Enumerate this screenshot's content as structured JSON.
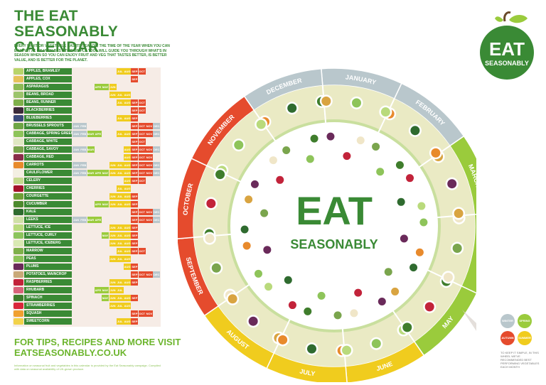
{
  "title": "THE EAT SEASONABLY CALENDAR",
  "intro": "EVERY FRUIT OR VEGETABLE HAS ITS SEASON, THE TIME OF THE YEAR WHEN YOU CAN ENJOY IT AT ITS VERY BEST. THIS SIMPLE TOOL WILL GUIDE YOU THROUGH WHAT'S IN SEASON WHEN SO YOU CAN ENJOY FRUIT AND VEG THAT TASTES BETTER, IS BETTER VALUE, AND IS BETTER FOR THE PLANET.",
  "colors": {
    "winter": "#b9c7cc",
    "spring": "#9acb3c",
    "summer": "#f0cc1e",
    "autumn": "#e54b2d",
    "green": "#3a8a35",
    "ring_ivory": "#eaeac4",
    "inner": "#c9df9e"
  },
  "month_abbr": [
    "JAN",
    "FEB",
    "MAR",
    "APR",
    "MAY",
    "JUN",
    "JUL",
    "AUG",
    "SEP",
    "OCT",
    "NOV",
    "DEC"
  ],
  "produce": [
    {
      "name": "APPLES, BRAMLEY",
      "months": [
        7,
        8,
        9,
        10
      ]
    },
    {
      "name": "APPLES, COX",
      "months": [
        9
      ]
    },
    {
      "name": "ASPARAGUS",
      "months": [
        4,
        5,
        6
      ]
    },
    {
      "name": "BEANS, BROAD",
      "months": [
        6,
        7,
        8
      ]
    },
    {
      "name": "BEANS, RUNNER",
      "months": [
        7,
        8,
        9,
        10
      ]
    },
    {
      "name": "BLACKBERRIES",
      "months": [
        9,
        10
      ]
    },
    {
      "name": "BLUEBERRIES",
      "months": [
        7,
        8,
        9
      ]
    },
    {
      "name": "BRUSSELS SPROUTS",
      "months": [
        1,
        2,
        9,
        10,
        11,
        12
      ]
    },
    {
      "name": "CABBAGE, SPRING GREEN",
      "months": [
        1,
        2,
        3,
        4,
        7,
        8,
        9,
        10,
        11,
        12
      ]
    },
    {
      "name": "CABBAGE, WHITE",
      "months": [
        9,
        10
      ]
    },
    {
      "name": "CABBAGE, SAVOY",
      "months": [
        1,
        2,
        3,
        8,
        9,
        10,
        11,
        12
      ]
    },
    {
      "name": "CABBAGE, RED",
      "months": [
        8,
        9,
        10,
        11
      ]
    },
    {
      "name": "CARROTS",
      "months": [
        1,
        2,
        6,
        7,
        8,
        9,
        10,
        11,
        12
      ]
    },
    {
      "name": "CAULIFLOWER",
      "months": [
        1,
        2,
        3,
        4,
        5,
        6,
        7,
        8,
        9,
        10,
        11,
        12
      ]
    },
    {
      "name": "CELERY",
      "months": [
        8,
        9,
        10
      ]
    },
    {
      "name": "CHERRIES",
      "months": [
        7,
        8
      ]
    },
    {
      "name": "COURGETTE",
      "months": [
        6,
        7,
        8,
        9
      ]
    },
    {
      "name": "CUCUMBER",
      "months": [
        4,
        5,
        6,
        7,
        8,
        9
      ]
    },
    {
      "name": "KALE",
      "months": [
        9,
        10,
        11,
        12
      ]
    },
    {
      "name": "LEEKS",
      "months": [
        1,
        2,
        3,
        4,
        9,
        10,
        11,
        12
      ]
    },
    {
      "name": "LETTUCE, ICE",
      "months": [
        6,
        7,
        8,
        9
      ]
    },
    {
      "name": "LETTUCE, CURLY",
      "months": [
        5,
        6,
        7,
        8,
        9
      ]
    },
    {
      "name": "LETTUCE, ICEBERG",
      "months": [
        6,
        7,
        8,
        9
      ]
    },
    {
      "name": "MARROW",
      "months": [
        7,
        8,
        9,
        10
      ]
    },
    {
      "name": "PEAS",
      "months": [
        6,
        7,
        8
      ]
    },
    {
      "name": "PLUMS",
      "months": [
        8,
        9
      ]
    },
    {
      "name": "POTATOES, MAINCROP",
      "months": [
        9,
        10,
        11,
        12
      ]
    },
    {
      "name": "RASPBERRIES",
      "months": [
        6,
        7,
        8,
        9
      ]
    },
    {
      "name": "RHUBARB",
      "months": [
        4,
        5,
        6,
        7
      ]
    },
    {
      "name": "SPINACH",
      "months": [
        5,
        6,
        7,
        8,
        9
      ]
    },
    {
      "name": "STRAWBERRIES",
      "months": [
        6,
        7,
        8
      ]
    },
    {
      "name": "SQUASH",
      "months": [
        9,
        10,
        11
      ]
    },
    {
      "name": "SWEETCORN",
      "months": [
        7,
        8,
        9
      ]
    }
  ],
  "tips_line1": "FOR TIPS, RECIPES AND MORE VISIT",
  "tips_line2": "EATSEASONABLY.CO.UK",
  "footnote": "Information on seasonal fruit and vegetables in this calendar is provided by the Eat Seasonably campaign. Compiled with data on seasonal availability of UK-grown produce.",
  "logo": {
    "line1": "EAT",
    "line2": "SEASONABLY"
  },
  "center": {
    "line1": "EAT",
    "line2": "SEASONABLY"
  },
  "wheel_months": [
    "JANUARY",
    "FEBRUARY",
    "MARCH",
    "APRIL",
    "MAY",
    "JUNE",
    "JULY",
    "AUGUST",
    "SEPTEMBER",
    "OCTOBER",
    "NOVEMBER",
    "DECEMBER"
  ],
  "legend": {
    "winter": "WINTER",
    "spring": "SPRING",
    "autumn": "AUTUMN",
    "summer": "SUMMER"
  },
  "legend_note": "TO KEEP IT SIMPLE, IN THIS WHEEL WE'VE RECOMMENDED BEST PERFORMING VEGETABLES EACH MONTH"
}
